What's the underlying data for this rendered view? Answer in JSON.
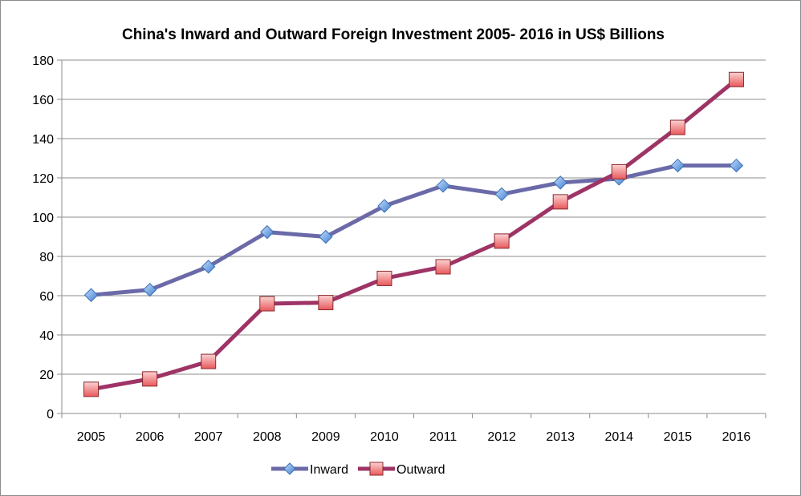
{
  "chart_data": {
    "type": "line",
    "title": "China's Inward and Outward Foreign Investment 2005- 2016 in US$ Billions",
    "xlabel": "",
    "ylabel": "",
    "categories": [
      "2005",
      "2006",
      "2007",
      "2008",
      "2009",
      "2010",
      "2011",
      "2012",
      "2013",
      "2014",
      "2015",
      "2016"
    ],
    "ylim": [
      0,
      180
    ],
    "yticks": [
      "0",
      "20",
      "40",
      "60",
      "80",
      "100",
      "120",
      "140",
      "160",
      "180"
    ],
    "grid": true,
    "legend_position": "bottom",
    "series": [
      {
        "name": "Inward",
        "marker": "diamond",
        "line_color": "#6b6aa8",
        "marker_color": "#5b9bd5",
        "values": [
          60.3,
          63.0,
          74.8,
          92.4,
          90.0,
          105.7,
          116.0,
          111.7,
          117.6,
          119.6,
          126.3,
          126.3
        ]
      },
      {
        "name": "Outward",
        "marker": "square",
        "line_color": "#9e3466",
        "marker_color": "#f28e8e",
        "values": [
          12.3,
          17.6,
          26.5,
          55.9,
          56.5,
          68.8,
          74.7,
          87.8,
          107.8,
          123.1,
          145.7,
          170.1
        ]
      }
    ]
  }
}
